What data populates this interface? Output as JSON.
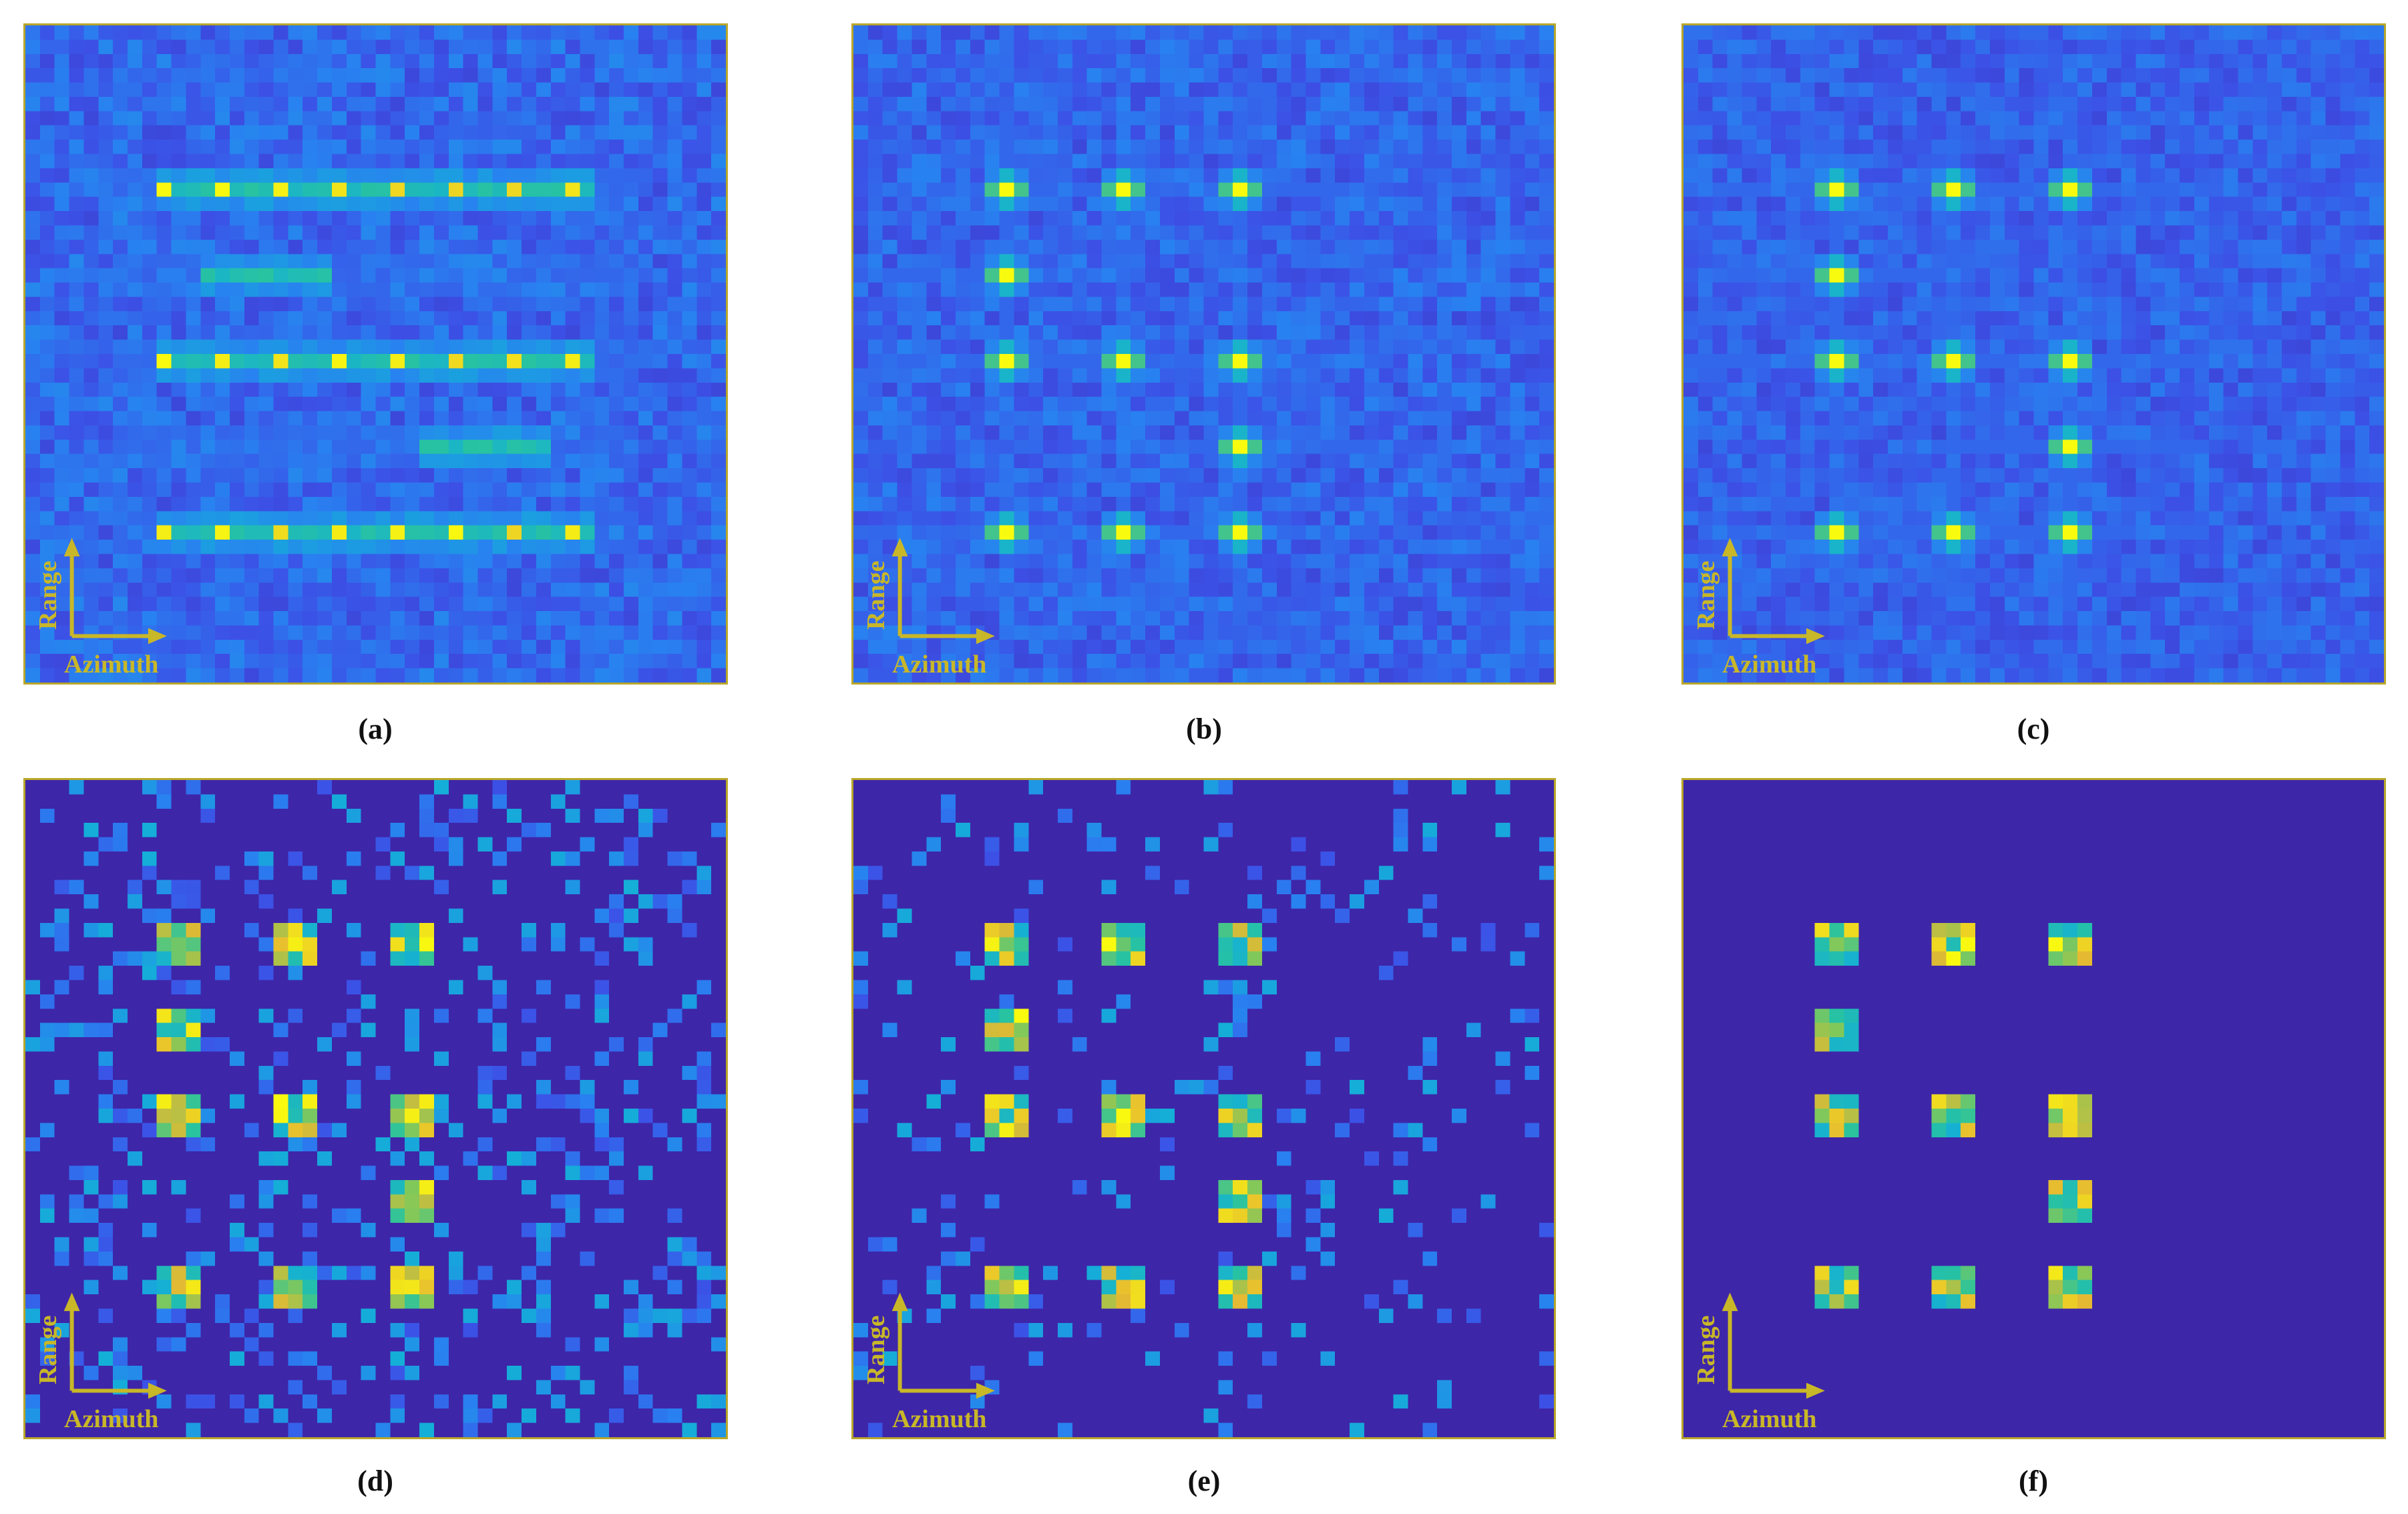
{
  "axis_labels": {
    "range": "Range",
    "azimuth": "Azimuth"
  },
  "colors": {
    "frame": "#b9a72a",
    "arrow": "#c8b728",
    "low": "#3b2f96",
    "high": "#f9fb0e"
  },
  "panels": [
    {
      "id": "a",
      "caption": "(a)",
      "style": "smeared",
      "noise": 0.2
    },
    {
      "id": "b",
      "caption": "(b)",
      "style": "focused",
      "noise": 0.18
    },
    {
      "id": "c",
      "caption": "(c)",
      "style": "focused",
      "noise": 0.16
    },
    {
      "id": "d",
      "caption": "(d)",
      "style": "sparse",
      "noise": 0.55
    },
    {
      "id": "e",
      "caption": "(e)",
      "style": "sparse",
      "noise": 0.25
    },
    {
      "id": "f",
      "caption": "(f)",
      "style": "sparse",
      "noise": 0.0
    }
  ]
}
